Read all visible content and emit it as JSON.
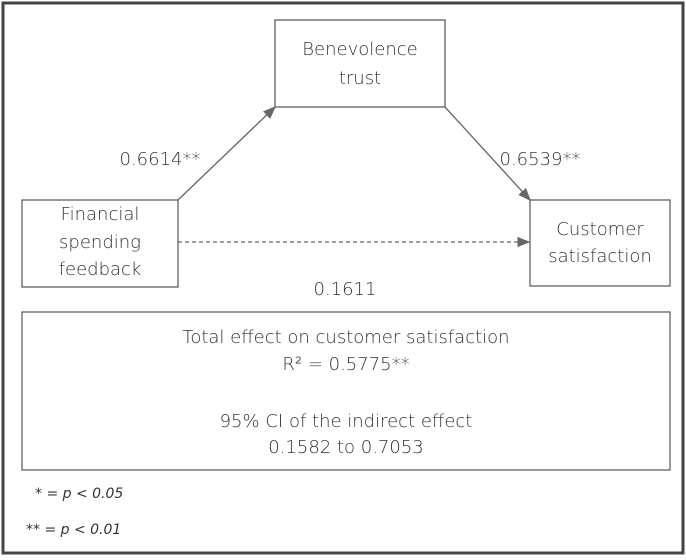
{
  "nodes": [
    {
      "label_lines": [
        "Benevolence",
        "trust"
      ]
    },
    {
      "label_lines": [
        "Financial",
        "spending",
        "feedback"
      ]
    },
    {
      "label_lines": [
        "Customer",
        "satisfaction"
      ]
    }
  ],
  "edges": [
    {
      "label": "0.6614**"
    },
    {
      "label": "0.6539**"
    },
    {
      "label": "0.1611"
    }
  ],
  "summary": {
    "lines": [
      "Total effect on customer satisfaction",
      "R² = 0.5775**",
      "95% CI of the indirect effect",
      "0.1582 to 0.7053"
    ]
  },
  "notes": [
    "* = p < 0.05",
    "** = p < 0.01"
  ]
}
